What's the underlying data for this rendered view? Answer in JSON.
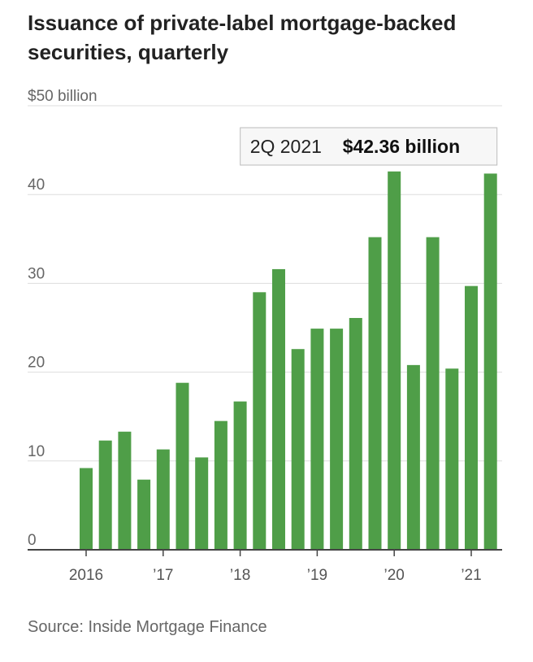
{
  "title": "Issuance of private-label mortgage-backed securities, quarterly",
  "source": "Source: Inside Mortgage Finance",
  "tooltip": {
    "period": "2Q 2021",
    "value": "$42.36 billion"
  },
  "colors": {
    "bar": "#4f9e48",
    "grid": "#dddddd",
    "axis": "#444444",
    "tooltip_border": "#bbbbbb",
    "tooltip_bg": "#f7f7f7"
  },
  "chart_data": {
    "type": "bar",
    "title": "Issuance of private-label mortgage-backed securities, quarterly",
    "ylabel": "$ billion",
    "xlabel": "",
    "ylim": [
      0,
      50
    ],
    "y_ticks": [
      {
        "value": 0,
        "label": "0"
      },
      {
        "value": 10,
        "label": "10"
      },
      {
        "value": 20,
        "label": "20"
      },
      {
        "value": 30,
        "label": "30"
      },
      {
        "value": 40,
        "label": "40"
      },
      {
        "value": 50,
        "label": "$50 billion"
      }
    ],
    "x_tick_labels": [
      {
        "index": 0,
        "label": "2016"
      },
      {
        "index": 4,
        "label": "’17"
      },
      {
        "index": 8,
        "label": "’18"
      },
      {
        "index": 12,
        "label": "’19"
      },
      {
        "index": 16,
        "label": "’20"
      },
      {
        "index": 20,
        "label": "’21"
      }
    ],
    "categories": [
      "1Q 2016",
      "2Q 2016",
      "3Q 2016",
      "4Q 2016",
      "1Q 2017",
      "2Q 2017",
      "3Q 2017",
      "4Q 2017",
      "1Q 2018",
      "2Q 2018",
      "3Q 2018",
      "4Q 2018",
      "1Q 2019",
      "2Q 2019",
      "3Q 2019",
      "4Q 2019",
      "1Q 2020",
      "2Q 2020",
      "3Q 2020",
      "4Q 2020",
      "1Q 2021",
      "2Q 2021"
    ],
    "values": [
      9.2,
      12.3,
      13.3,
      7.9,
      11.3,
      18.8,
      10.4,
      14.5,
      16.7,
      29.0,
      31.6,
      22.6,
      24.9,
      24.9,
      26.1,
      35.2,
      42.6,
      20.8,
      35.2,
      20.4,
      29.7,
      42.36
    ],
    "highlight": {
      "index": 21,
      "period": "2Q 2021",
      "value_label": "$42.36 billion"
    }
  }
}
